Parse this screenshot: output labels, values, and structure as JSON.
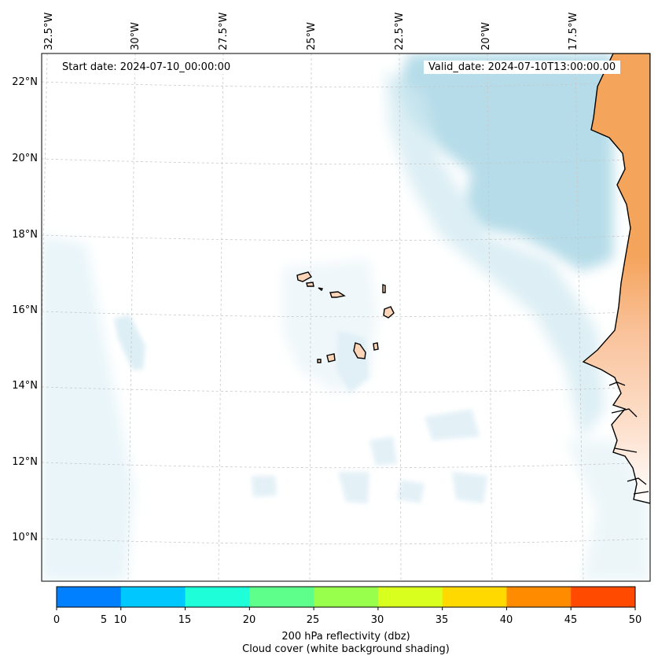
{
  "map": {
    "longitude_labels": [
      "32.5°W",
      "30°W",
      "27.5°W",
      "25°W",
      "22.5°W",
      "20°W",
      "17.5°W"
    ],
    "latitude_labels": [
      "22°N",
      "20°N",
      "18°N",
      "16°N",
      "14°N",
      "12°N",
      "10°N"
    ],
    "start_date": "Start date: 2024-07-10_00:00:00",
    "valid_date": "Valid_date: 2024-07-10T13:00:00.00",
    "land_color": "#f5a45c",
    "cloud_color": "#a9d6e5",
    "islands": [
      "Cape Verde islands"
    ]
  },
  "colorbar": {
    "ticks": [
      "0",
      "5",
      "10",
      "15",
      "20",
      "25",
      "30",
      "35",
      "40",
      "45",
      "50"
    ],
    "colors": [
      "#0080ff",
      "#00c8ff",
      "#1effd9",
      "#5eff8a",
      "#99ff4d",
      "#d9ff1e",
      "#ffd900",
      "#ff8c00",
      "#ff4a00"
    ],
    "label_line1": "200 hPa reflectivity (dbz)",
    "label_line2": "Cloud cover (white background shading)"
  }
}
